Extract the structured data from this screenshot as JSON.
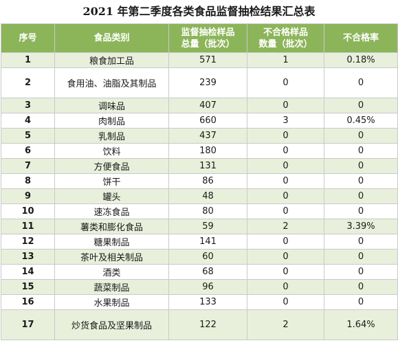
{
  "title": "2021 年第二季度各类食品监督抽检结果汇总表",
  "headers": {
    "index": "序号",
    "category": "食品类别",
    "total_line1": "监督抽检样品",
    "total_line2": "总量（批次）",
    "fail_line1": "不合格样品",
    "fail_line2": "数量（批次）",
    "rate": "不合格率"
  },
  "rows": [
    {
      "index": "1",
      "category": "粮食加工品",
      "total": "571",
      "failed": "1",
      "rate": "0.18%"
    },
    {
      "index": "2",
      "category": "食用油、油脂及其制品",
      "total": "239",
      "failed": "0",
      "rate": "0"
    },
    {
      "index": "3",
      "category": "调味品",
      "total": "407",
      "failed": "0",
      "rate": "0"
    },
    {
      "index": "4",
      "category": "肉制品",
      "total": "660",
      "failed": "3",
      "rate": "0.45%"
    },
    {
      "index": "5",
      "category": "乳制品",
      "total": "437",
      "failed": "0",
      "rate": "0"
    },
    {
      "index": "6",
      "category": "饮料",
      "total": "180",
      "failed": "0",
      "rate": "0"
    },
    {
      "index": "7",
      "category": "方便食品",
      "total": "131",
      "failed": "0",
      "rate": "0"
    },
    {
      "index": "8",
      "category": "饼干",
      "total": "86",
      "failed": "0",
      "rate": "0"
    },
    {
      "index": "9",
      "category": "罐头",
      "total": "48",
      "failed": "0",
      "rate": "0"
    },
    {
      "index": "10",
      "category": "速冻食品",
      "total": "80",
      "failed": "0",
      "rate": "0"
    },
    {
      "index": "11",
      "category": "薯类和膨化食品",
      "total": "59",
      "failed": "2",
      "rate": "3.39%"
    },
    {
      "index": "12",
      "category": "糖果制品",
      "total": "141",
      "failed": "0",
      "rate": "0"
    },
    {
      "index": "13",
      "category": "茶叶及相关制品",
      "total": "60",
      "failed": "0",
      "rate": "0"
    },
    {
      "index": "14",
      "category": "酒类",
      "total": "68",
      "failed": "0",
      "rate": "0"
    },
    {
      "index": "15",
      "category": "蔬菜制品",
      "total": "96",
      "failed": "0",
      "rate": "0"
    },
    {
      "index": "16",
      "category": "水果制品",
      "total": "133",
      "failed": "0",
      "rate": "0"
    },
    {
      "index": "17",
      "category": "炒货食品及坚果制品",
      "total": "122",
      "failed": "2",
      "rate": "1.64%"
    }
  ],
  "colors": {
    "header_bg": "#8cb55a",
    "stripe_bg": "#e8f0db",
    "border": "#c9c9c9"
  }
}
